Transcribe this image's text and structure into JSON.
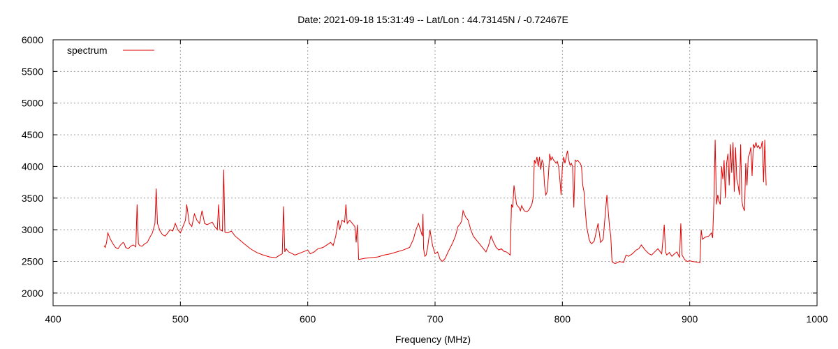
{
  "chart_data": {
    "type": "line",
    "title": "Date: 2021-09-18 15:31:49  --  Lat/Lon : 44.73145N / -0.72467E",
    "xlabel": "Frequency (MHz)",
    "ylabel": "",
    "xlim": [
      400,
      1000
    ],
    "ylim": [
      1800,
      6000
    ],
    "xticks": [
      400,
      500,
      600,
      700,
      800,
      900,
      1000
    ],
    "yticks": [
      2000,
      2500,
      3000,
      3500,
      4000,
      4500,
      5000,
      5500,
      6000
    ],
    "grid": true,
    "legend": "top-left",
    "colors": {
      "spectrum": "#e00000",
      "grid": "#a0a0a0",
      "axis": "#000000"
    },
    "series": [
      {
        "name": "spectrum",
        "x": [
          440,
          441,
          442,
          443,
          445,
          447,
          449,
          451,
          453,
          455,
          456,
          457,
          459,
          461,
          463,
          465,
          466,
          467,
          468,
          470,
          472,
          474,
          476,
          478,
          480,
          481,
          482,
          484,
          486,
          488,
          490,
          492,
          494,
          496,
          498,
          500,
          502,
          504,
          505,
          507,
          509,
          511,
          513,
          515,
          517,
          519,
          521,
          523,
          525,
          527,
          529,
          530,
          531,
          533,
          534,
          535,
          537,
          540,
          543,
          546,
          550,
          555,
          560,
          565,
          570,
          575,
          578,
          580,
          581,
          582,
          583,
          585,
          588,
          590,
          595,
          600,
          602,
          605,
          608,
          612,
          615,
          618,
          620,
          622,
          624,
          625,
          627,
          629,
          630,
          631,
          633,
          635,
          637,
          638,
          639,
          640,
          645,
          650,
          655,
          660,
          665,
          670,
          675,
          680,
          683,
          685,
          687,
          690,
          690.5,
          691,
          692,
          693,
          693.5,
          694,
          696,
          698,
          700,
          702,
          704,
          706,
          708,
          710,
          712,
          714,
          716,
          718,
          720,
          721,
          722,
          724,
          726,
          728,
          730,
          732,
          734,
          736,
          738,
          740,
          742,
          744,
          746,
          748,
          750,
          752,
          754,
          756,
          758,
          759,
          760,
          761,
          762,
          764,
          766,
          767,
          768,
          770,
          772,
          774,
          776,
          777,
          778,
          779,
          780,
          781,
          782,
          783,
          784,
          785,
          786,
          787,
          788,
          789,
          790,
          791,
          792,
          793,
          794,
          795,
          796,
          797,
          798,
          799,
          800,
          801,
          802,
          803,
          804,
          805,
          806,
          807,
          808,
          809,
          810,
          811,
          812,
          813,
          814,
          815,
          816,
          817,
          818,
          819,
          820,
          821,
          822,
          823,
          825,
          828,
          830,
          832,
          835,
          837,
          838,
          839,
          840,
          841,
          842,
          845,
          848,
          850,
          852,
          855,
          858,
          860,
          862,
          865,
          868,
          870,
          872,
          875,
          878,
          880,
          881,
          882,
          884,
          886,
          888,
          890,
          892,
          893,
          894,
          896,
          898,
          900,
          902,
          905,
          908,
          909,
          910,
          912,
          915,
          917,
          918,
          919,
          920,
          921,
          922,
          923,
          924,
          925,
          926,
          927,
          928,
          929,
          930,
          931,
          932,
          933,
          934,
          935,
          936,
          937,
          938,
          939,
          940,
          941,
          942,
          943,
          944,
          945,
          946,
          947,
          948,
          949,
          950,
          951,
          952,
          953,
          954,
          955,
          956,
          957,
          958,
          959,
          960
        ],
        "values": [
          2750,
          2720,
          2800,
          2950,
          2850,
          2780,
          2720,
          2700,
          2760,
          2800,
          2780,
          2720,
          2700,
          2740,
          2760,
          2730,
          3400,
          2780,
          2750,
          2740,
          2780,
          2800,
          2880,
          2950,
          3100,
          3650,
          3100,
          2980,
          2920,
          2900,
          2950,
          3000,
          2980,
          3100,
          3000,
          2950,
          3050,
          3150,
          3400,
          3100,
          3050,
          3250,
          3150,
          3100,
          3300,
          3100,
          3080,
          3100,
          3120,
          3050,
          3000,
          3400,
          3000,
          2980,
          3950,
          2960,
          2950,
          2980,
          2900,
          2850,
          2780,
          2700,
          2640,
          2600,
          2570,
          2560,
          2600,
          2620,
          3370,
          2650,
          2700,
          2650,
          2620,
          2600,
          2640,
          2680,
          2620,
          2650,
          2700,
          2720,
          2760,
          2800,
          2750,
          2900,
          3150,
          3000,
          3150,
          3120,
          3400,
          3100,
          3150,
          3100,
          3050,
          2800,
          3080,
          2530,
          2550,
          2560,
          2570,
          2600,
          2620,
          2650,
          2680,
          2720,
          2850,
          3000,
          3100,
          2900,
          3250,
          2700,
          2580,
          2600,
          2650,
          2700,
          3000,
          2750,
          2620,
          2650,
          2530,
          2500,
          2550,
          2640,
          2720,
          2800,
          2900,
          3050,
          3100,
          3150,
          3300,
          3200,
          3150,
          3000,
          2900,
          2850,
          2800,
          2750,
          2700,
          2650,
          2750,
          2900,
          2800,
          2720,
          2680,
          2700,
          2660,
          2650,
          2620,
          2600,
          3400,
          3350,
          3700,
          3400,
          3350,
          3300,
          3380,
          3300,
          3280,
          3320,
          3400,
          3500,
          4100,
          4050,
          4150,
          4000,
          4150,
          3950,
          4100,
          4050,
          3700,
          3550,
          3600,
          3850,
          4200,
          4100,
          4150,
          4100,
          4080,
          4050,
          4080,
          4000,
          3800,
          3550,
          4000,
          4150,
          4050,
          4150,
          4250,
          4100,
          4020,
          4050,
          4000,
          3350,
          4100,
          4080,
          4100,
          4070,
          4050,
          4000,
          3700,
          3600,
          3300,
          3050,
          2950,
          2850,
          2800,
          2780,
          2820,
          3100,
          2800,
          2850,
          3550,
          3050,
          2900,
          2500,
          2480,
          2470,
          2470,
          2500,
          2480,
          2600,
          2580,
          2620,
          2680,
          2700,
          2760,
          2680,
          2620,
          2600,
          2640,
          2700,
          2620,
          3080,
          2650,
          2600,
          2640,
          2580,
          2620,
          2650,
          2560,
          3100,
          2600,
          2530,
          2500,
          2510,
          2500,
          2490,
          2480,
          3000,
          2850,
          2880,
          2900,
          2950,
          2870,
          3450,
          4420,
          3400,
          3550,
          3450,
          3400,
          4000,
          3800,
          4100,
          3500,
          4050,
          4200,
          3700,
          4350,
          3900,
          4380,
          3600,
          4300,
          3800,
          3700,
          3550,
          4350,
          3450,
          3350,
          3300,
          4050,
          3700,
          4150,
          4200,
          4300,
          3850,
          4350,
          4300,
          4380,
          4300,
          4330,
          4280,
          4300,
          4400,
          3750,
          4420,
          3700
        ]
      }
    ]
  }
}
